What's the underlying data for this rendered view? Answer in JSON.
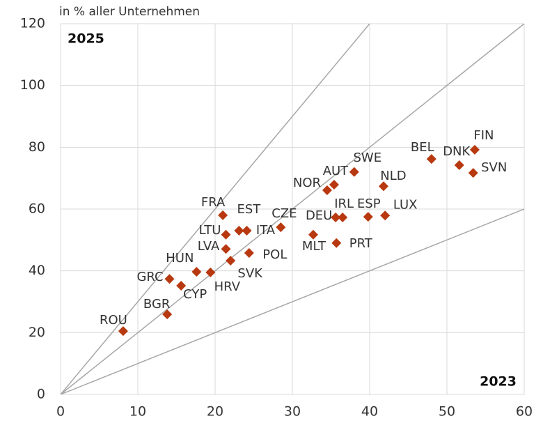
{
  "chart_data": {
    "type": "scatter",
    "subtitle": "in % aller Unternehmen",
    "y_corner_label": "2025",
    "x_corner_label": "2023",
    "color": "#b8380f",
    "grid": true,
    "reference_slopes": [
      1,
      2,
      3
    ],
    "categories": [
      "ROU",
      "BGR",
      "GRC",
      "CYP",
      "HUN",
      "HRV",
      "LVA",
      "SVK",
      "POL",
      "LTU",
      "FRA",
      "EST",
      "ITA",
      "CZE",
      "MLT",
      "PRT",
      "DEU",
      "IRL",
      "ESP",
      "LUX",
      "NOR",
      "AUT",
      "SWE",
      "NLD",
      "BEL",
      "DNK",
      "FIN",
      "SVN"
    ],
    "x": [
      8.1,
      13.8,
      14.1,
      15.6,
      17.6,
      19.4,
      21.4,
      22.0,
      24.4,
      21.4,
      21.0,
      23.1,
      24.1,
      28.5,
      32.7,
      35.7,
      35.6,
      36.5,
      39.8,
      42.0,
      34.5,
      35.4,
      38.0,
      41.8,
      48.0,
      51.6,
      53.6,
      53.4
    ],
    "values": [
      20.5,
      25.9,
      37.4,
      35.2,
      39.7,
      39.5,
      47.1,
      43.3,
      45.8,
      51.7,
      58.0,
      53.0,
      53.0,
      54.1,
      51.7,
      49.0,
      57.3,
      57.3,
      57.5,
      57.9,
      66.1,
      67.9,
      72.0,
      67.4,
      76.2,
      74.2,
      79.2,
      71.7
    ],
    "xlim": [
      0,
      60
    ],
    "xticks": [
      0,
      10,
      20,
      30,
      40,
      50,
      60
    ],
    "ylim": [
      0,
      120
    ],
    "yticks": [
      0,
      20,
      40,
      60,
      80,
      100,
      120
    ]
  }
}
